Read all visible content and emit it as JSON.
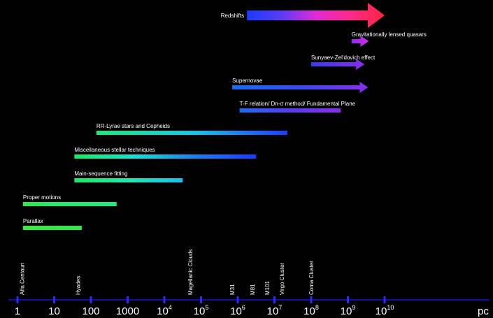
{
  "axis": {
    "unit": "pc",
    "ticks": [
      {
        "base": "1",
        "sup": ""
      },
      {
        "base": "10",
        "sup": ""
      },
      {
        "base": "100",
        "sup": ""
      },
      {
        "base": "1000",
        "sup": ""
      },
      {
        "base": "10",
        "sup": "4"
      },
      {
        "base": "10",
        "sup": "5"
      },
      {
        "base": "10",
        "sup": "6"
      },
      {
        "base": "10",
        "sup": "7"
      },
      {
        "base": "10",
        "sup": "8"
      },
      {
        "base": "10",
        "sup": "9"
      },
      {
        "base": "10",
        "sup": "10"
      }
    ]
  },
  "objects": [
    {
      "label": "Alfa Centauri",
      "log": 0.12
    },
    {
      "label": "Hyades",
      "log": 1.65
    },
    {
      "label": "Magellanic Clouds",
      "log": 4.7
    },
    {
      "label": "M31",
      "log": 5.85
    },
    {
      "label": "M81",
      "log": 6.4
    },
    {
      "label": "M101",
      "log": 6.8
    },
    {
      "label": "Virgo Cluster",
      "log": 7.2
    },
    {
      "label": "Coma Cluster",
      "log": 8.0
    }
  ],
  "methods": [
    {
      "label": "Redshifts",
      "from": 6.25,
      "to": 10.0,
      "arrow": true,
      "big": true,
      "colors": [
        "#1a3cff",
        "#5a3cf5",
        "#e02ad6",
        "#ff2a8a",
        "#ff2440"
      ]
    },
    {
      "label": "Gravitationally lensed quasars",
      "from": 9.1,
      "to": 9.57,
      "arrow": true,
      "colors": [
        "#8a2cf0",
        "#d22ce0"
      ]
    },
    {
      "label": "Sunyaev-Zel'dovich effect",
      "from": 8.0,
      "to": 9.45,
      "arrow": true,
      "colors": [
        "#3a3af0",
        "#8a2cf0"
      ]
    },
    {
      "label": "Supernovae",
      "from": 5.85,
      "to": 9.55,
      "arrow": true,
      "colors": [
        "#1a6cf5",
        "#3a4af0",
        "#8a2cf0"
      ]
    },
    {
      "label": "T-F relation/ Dn-σ method/ Fundamental Plane",
      "from": 6.05,
      "to": 8.8,
      "colors": [
        "#1a6cf5",
        "#5a3cf0",
        "#8a2cf0"
      ]
    },
    {
      "label": "RR-Lyrae stars and Cepheids",
      "from": 2.15,
      "to": 7.35,
      "colors": [
        "#1ee87a",
        "#18c8e8",
        "#1a3cff"
      ]
    },
    {
      "label": "Miscellaneous stellar techniques",
      "from": 1.55,
      "to": 6.5,
      "colors": [
        "#1ee860",
        "#18e0d0",
        "#1a80f0",
        "#1a3cff"
      ]
    },
    {
      "label": "Main-sequence fitting",
      "from": 1.55,
      "to": 4.5,
      "colors": [
        "#1ee860",
        "#20e8b0",
        "#18c0f0"
      ]
    },
    {
      "label": "Proper motions",
      "from": 0.15,
      "to": 2.7,
      "colors": [
        "#2ae85a",
        "#22e880"
      ]
    },
    {
      "label": "Parallax",
      "from": 0.15,
      "to": 1.75,
      "colors": [
        "#35ee3a",
        "#2ee84a"
      ]
    }
  ]
}
